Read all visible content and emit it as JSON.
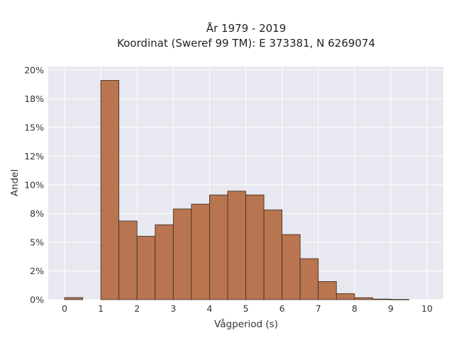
{
  "chart_data": {
    "type": "bar",
    "title_line1": "År 1979 - 2019",
    "title_line2": "Koordinat (Sweref 99 TM): E 373381, N 6269074",
    "xlabel": "Vågperiod (s)",
    "ylabel": "Andel",
    "bin_width": 0.5,
    "bin_starts": [
      0,
      0.5,
      1,
      1.5,
      2,
      2.5,
      3,
      3.5,
      4,
      4.5,
      5,
      5.5,
      6,
      6.5,
      7,
      7.5,
      8,
      8.5,
      9,
      9.5
    ],
    "values": [
      0.0018,
      0,
      0.191,
      0.0685,
      0.0552,
      0.0652,
      0.079,
      0.0832,
      0.0912,
      0.0945,
      0.0912,
      0.0782,
      0.0567,
      0.0357,
      0.0158,
      0.0052,
      0.0017,
      0.0005,
      0.0002,
      0
    ],
    "xlim": [
      -0.45,
      10.45
    ],
    "ylim": [
      0,
      0.203
    ],
    "x_ticks": [
      0,
      1,
      2,
      3,
      4,
      5,
      6,
      7,
      8,
      9,
      10
    ],
    "x_tick_labels": [
      "0",
      "1",
      "2",
      "3",
      "4",
      "5",
      "6",
      "7",
      "8",
      "9",
      "10"
    ],
    "y_ticks": [
      0,
      0.025,
      0.05,
      0.075,
      0.1,
      0.125,
      0.15,
      0.175,
      0.2
    ],
    "y_tick_labels": [
      "0%",
      "2%",
      "5%",
      "8%",
      "10%",
      "12%",
      "15%",
      "18%",
      "20%"
    ],
    "grid": true,
    "colors": {
      "bar_fill": "#b87550",
      "bar_edge": "#3a2a20",
      "plot_bg": "#e8e8f0",
      "grid": "#ffffff"
    }
  }
}
